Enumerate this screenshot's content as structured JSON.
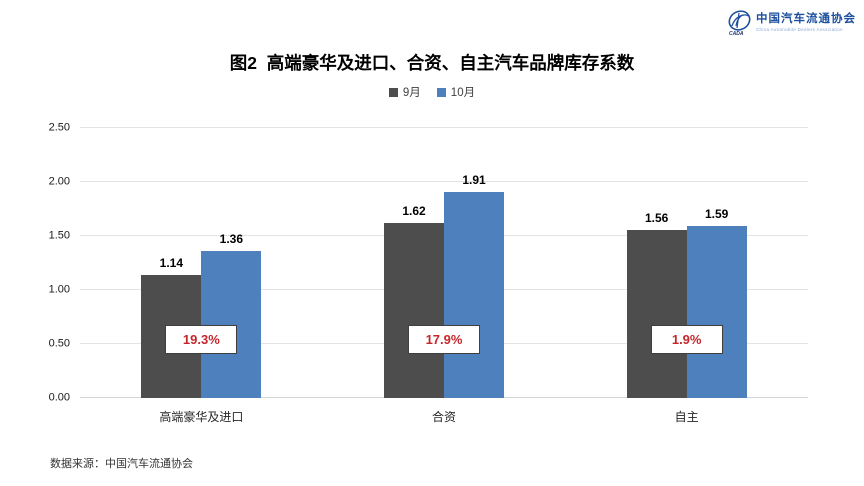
{
  "logo": {
    "org_cn": "中国汽车流通协会",
    "org_en": "China Automobile Dealers Association",
    "icon_text": "CADA",
    "color": "#1d4f9e"
  },
  "chart_data": {
    "type": "bar",
    "title": "图2  高端豪华及进口、合资、自主汽车品牌库存系数",
    "categories": [
      "高端豪华及进口",
      "合资",
      "自主"
    ],
    "series": [
      {
        "name": "9月",
        "color": "#4d4d4d",
        "values": [
          1.14,
          1.62,
          1.56
        ]
      },
      {
        "name": "10月",
        "color": "#4e80bd",
        "values": [
          1.36,
          1.91,
          1.59
        ]
      }
    ],
    "change_labels": [
      "19.3%",
      "17.9%",
      "1.9%"
    ],
    "change_label_color": "#c5262c",
    "ylim": [
      0,
      2.5
    ],
    "ytick_step": 0.5,
    "ytick_labels": [
      "0.00",
      "0.50",
      "1.00",
      "1.50",
      "2.00",
      "2.50"
    ],
    "grid": true,
    "legend_position": "top"
  },
  "footer": {
    "source": "数据来源：中国汽车流通协会"
  }
}
